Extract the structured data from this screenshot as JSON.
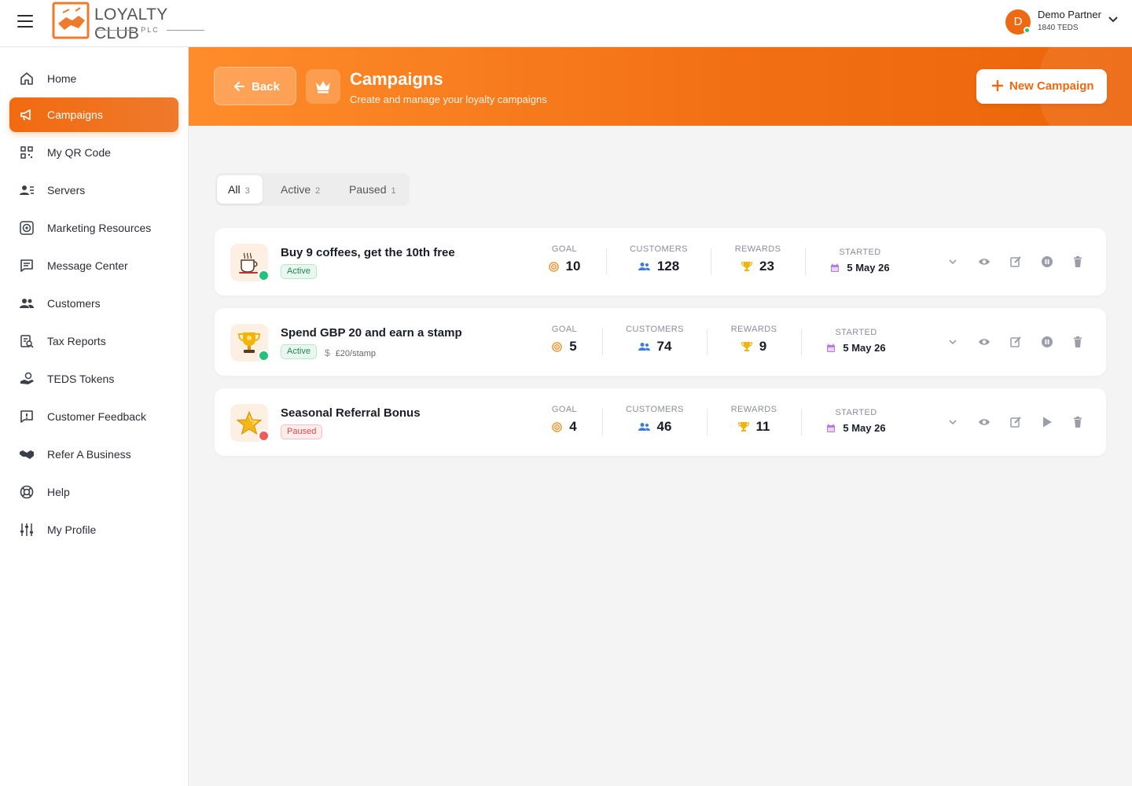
{
  "brand": {
    "name": "LOYALTY CLUB",
    "sub": "PLC"
  },
  "user": {
    "initial": "D",
    "name": "Demo Partner",
    "balance": "1840 TEDS"
  },
  "sidebar": {
    "items": [
      {
        "label": "Home",
        "icon": "home-icon"
      },
      {
        "label": "Campaigns",
        "icon": "megaphone-icon",
        "active": true
      },
      {
        "label": "My QR Code",
        "icon": "qr-code-icon"
      },
      {
        "label": "Servers",
        "icon": "servers-icon"
      },
      {
        "label": "Marketing Resources",
        "icon": "target-icon"
      },
      {
        "label": "Message Center",
        "icon": "message-icon"
      },
      {
        "label": "Customers",
        "icon": "users-icon"
      },
      {
        "label": "Tax Reports",
        "icon": "report-icon"
      },
      {
        "label": "TEDS Tokens",
        "icon": "tokens-icon"
      },
      {
        "label": "Customer Feedback",
        "icon": "feedback-icon"
      },
      {
        "label": "Refer A Business",
        "icon": "handshake-icon"
      },
      {
        "label": "Help",
        "icon": "lifebuoy-icon"
      },
      {
        "label": "My Profile",
        "icon": "sliders-icon"
      }
    ]
  },
  "header": {
    "back_label": "Back",
    "title": "Campaigns",
    "subtitle": "Create and manage your loyalty campaigns",
    "new_label": "New Campaign"
  },
  "tabs": [
    {
      "label": "All",
      "count": "3",
      "selected": true
    },
    {
      "label": "Active",
      "count": "2"
    },
    {
      "label": "Paused",
      "count": "1"
    }
  ],
  "stat_labels": {
    "goal": "GOAL",
    "customers": "CUSTOMERS",
    "rewards": "REWARDS",
    "started": "STARTED"
  },
  "campaigns": [
    {
      "name": "Buy 9 coffees, get the 10th free",
      "status": "Active",
      "rate": "",
      "goal": "10",
      "customers": "128",
      "rewards": "23",
      "started": "5 May 26",
      "icon": "coffee-icon",
      "status_color": "#22c27a",
      "action": "pause-icon"
    },
    {
      "name": "Spend GBP 20 and earn a stamp",
      "status": "Active",
      "rate": "£20/stamp",
      "rate_symbol": "$",
      "goal": "5",
      "customers": "74",
      "rewards": "9",
      "started": "5 May 26",
      "icon": "trophy-icon",
      "status_color": "#22c27a",
      "action": "pause-icon"
    },
    {
      "name": "Seasonal Referral Bonus",
      "status": "Paused",
      "rate": "",
      "goal": "4",
      "customers": "46",
      "rewards": "11",
      "started": "5 May 26",
      "icon": "star-icon",
      "status_color": "#ef5a5a",
      "action": "play-icon"
    }
  ],
  "colors": {
    "accent": "#ee6a12",
    "active": "#22c27a",
    "paused": "#ef5a5a"
  }
}
